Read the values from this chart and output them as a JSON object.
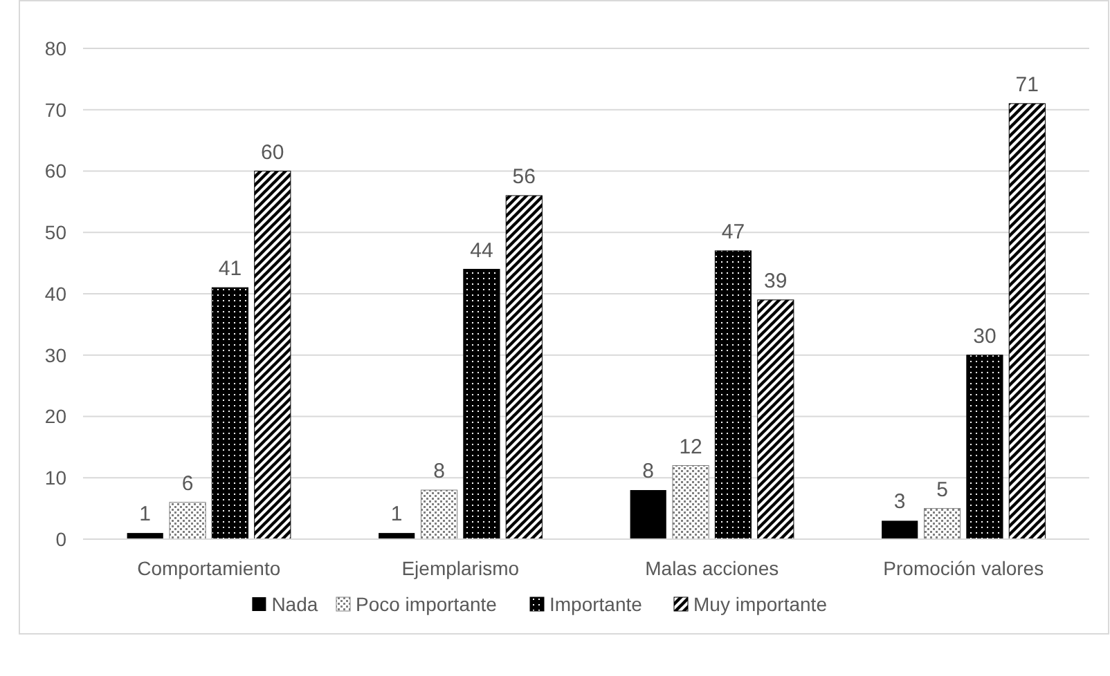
{
  "chart_data": {
    "type": "bar",
    "categories": [
      "Comportamiento",
      "Ejemplarismo",
      "Malas acciones",
      "Promoción valores"
    ],
    "series": [
      {
        "name": "Nada",
        "color": "#000000",
        "values": [
          1,
          1,
          8,
          3
        ]
      },
      {
        "name": "Poco importante",
        "color": "#7f7f7f",
        "values": [
          6,
          8,
          12,
          5
        ]
      },
      {
        "name": "Importante",
        "color": "#000000",
        "values": [
          41,
          44,
          47,
          30
        ]
      },
      {
        "name": "Muy importante",
        "color": "#000000",
        "values": [
          60,
          56,
          39,
          71
        ]
      }
    ],
    "ylim": [
      0,
      80
    ],
    "yticks": [
      0,
      10,
      20,
      30,
      40,
      50,
      60,
      70,
      80
    ],
    "grid": "y",
    "legend": "bottom",
    "data_labels": true
  }
}
